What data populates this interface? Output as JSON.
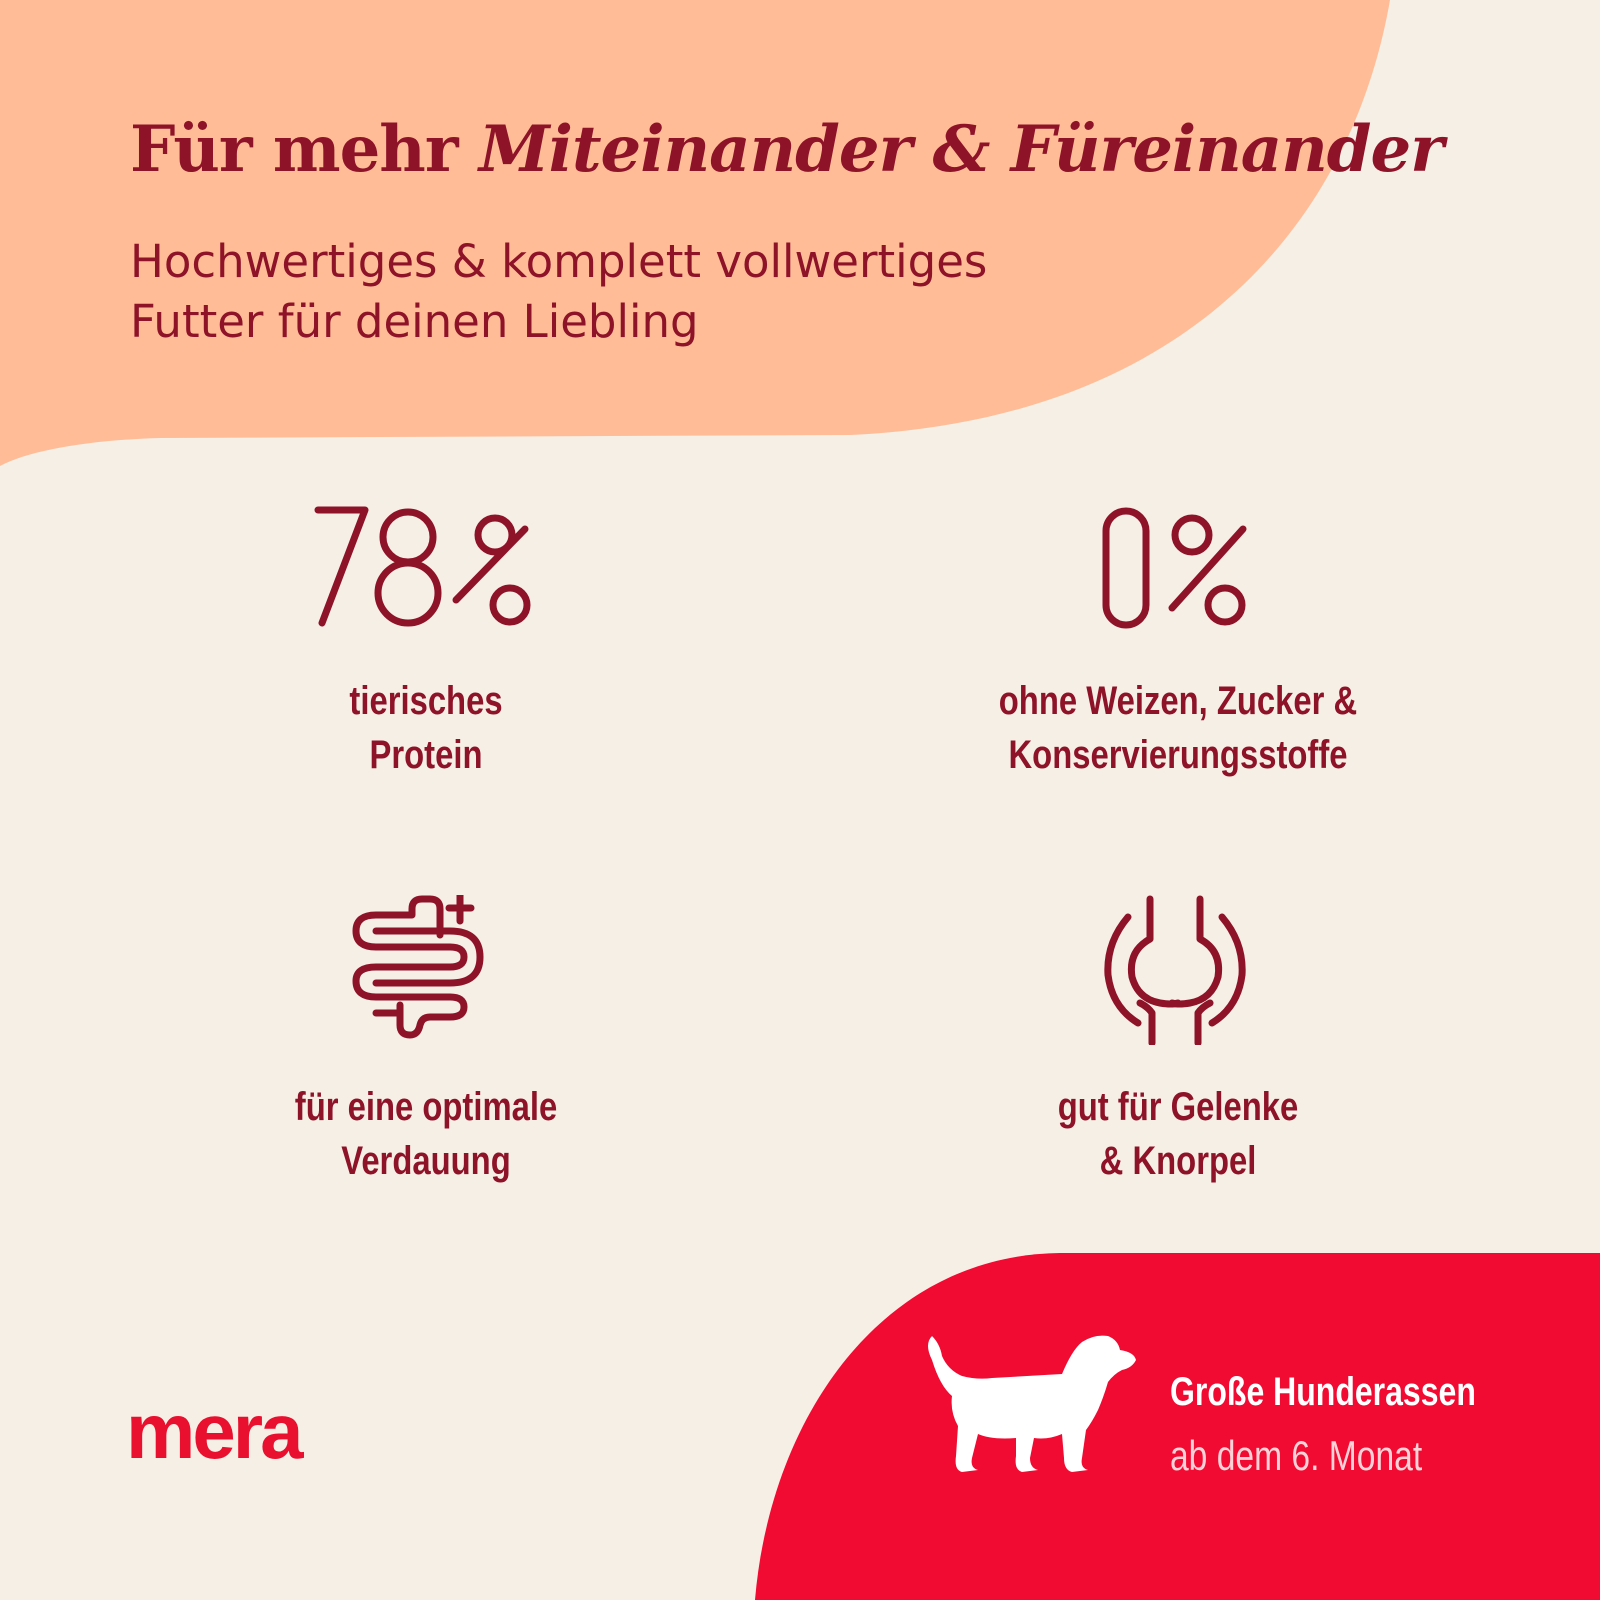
{
  "colors": {
    "background": "#f6efe5",
    "peach_shape": "#ffbc97",
    "accent_red": "#f10a31",
    "text_dark_red": "#8e1329",
    "logo_red": "#e8102e"
  },
  "header": {
    "title_plain": "Für mehr ",
    "title_emphasis": "Miteinander & Füreinander",
    "subtitle_line1": "Hochwertiges & komplett vollwertiges",
    "subtitle_line2": "Futter für deinen Liebling"
  },
  "features": [
    {
      "icon": "percent-78-icon",
      "value": "78%",
      "line1": "tierisches",
      "line2": "Protein"
    },
    {
      "icon": "percent-0-icon",
      "value": "0%",
      "line1": "ohne Weizen, Zucker &",
      "line2": "Konservierungsstoffe"
    },
    {
      "icon": "intestine-plus-icon",
      "line1": "für eine optimale",
      "line2": "Verdauung"
    },
    {
      "icon": "joint-icon",
      "line1": "gut für Gelenke",
      "line2": "& Knorpel"
    }
  ],
  "brand": {
    "logo_text": "mera"
  },
  "badge": {
    "icon": "dog-icon",
    "title": "Große Hunderassen",
    "subtitle": "ab dem 6. Monat"
  }
}
